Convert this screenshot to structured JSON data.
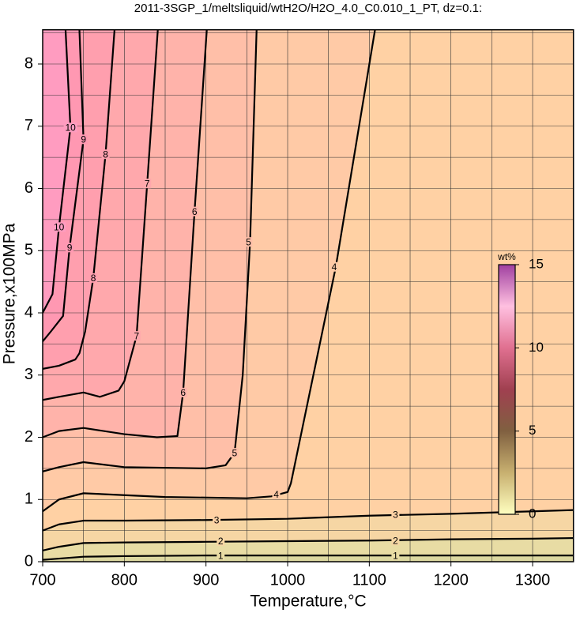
{
  "chart_data": {
    "type": "contour",
    "title": "2011-3SGP_1/meltsliquid/wtH2O/H2O_4.0_C0.010_1_PT, dz=0.1:",
    "xlabel": "Temperature,°C",
    "ylabel": "Pressure,x100MPa",
    "xlim": [
      700,
      1350
    ],
    "ylim": [
      0,
      8.55
    ],
    "xticks": [
      700,
      800,
      900,
      1000,
      1100,
      1200,
      1300
    ],
    "yticks": [
      0,
      1,
      2,
      3,
      4,
      5,
      6,
      7,
      8
    ],
    "xgrid": [
      750,
      800,
      850,
      900,
      950,
      1000,
      1050,
      1100,
      1150,
      1200,
      1250,
      1300
    ],
    "ygrid": [
      0.5,
      1,
      1.5,
      2,
      2.5,
      3,
      3.5,
      4,
      4.5,
      5,
      5.5,
      6,
      6.5,
      7,
      7.5,
      8,
      8.5
    ],
    "background": "#dcd8a0",
    "line_color": "#000000",
    "contours": [
      {
        "level": 1,
        "color": "#e8dca4",
        "x": [
          700,
          720,
          750,
          800,
          900,
          1000,
          1100,
          1200,
          1300,
          1350
        ],
        "y": [
          0.03,
          0.05,
          0.08,
          0.09,
          0.1,
          0.1,
          0.1,
          0.1,
          0.1,
          0.1
        ],
        "labels": [
          {
            "x": 918,
            "y": 0.1
          },
          {
            "x": 1132,
            "y": 0.1
          }
        ]
      },
      {
        "level": 2,
        "color": "#f6d6a4",
        "x": [
          700,
          720,
          750,
          800,
          900,
          1000,
          1100,
          1200,
          1300,
          1350
        ],
        "y": [
          0.18,
          0.24,
          0.3,
          0.31,
          0.32,
          0.33,
          0.34,
          0.36,
          0.37,
          0.38
        ],
        "labels": [
          {
            "x": 918,
            "y": 0.33
          },
          {
            "x": 1132,
            "y": 0.34
          }
        ]
      },
      {
        "level": 3,
        "color": "#ffd1a4",
        "x": [
          700,
          720,
          750,
          800,
          900,
          1000,
          1100,
          1200,
          1300,
          1350
        ],
        "y": [
          0.5,
          0.6,
          0.66,
          0.66,
          0.67,
          0.69,
          0.74,
          0.77,
          0.81,
          0.83
        ],
        "labels": [
          {
            "x": 913,
            "y": 0.67
          },
          {
            "x": 1132,
            "y": 0.76
          }
        ]
      },
      {
        "level": 4,
        "color": "#ffcaa6",
        "x": [
          1107,
          1059,
          1004,
          1000,
          980,
          950,
          850,
          750,
          720,
          700
        ],
        "y": [
          8.55,
          4.74,
          1.26,
          1.12,
          1.05,
          1.02,
          1.04,
          1.1,
          1.0,
          0.81
        ],
        "labels": [
          {
            "x": 986,
            "y": 1.08
          },
          {
            "x": 1057,
            "y": 4.74
          }
        ]
      },
      {
        "level": 5,
        "color": "#ffbfa8",
        "x": [
          962,
          954,
          945,
          935,
          924,
          900,
          800,
          750,
          720,
          700
        ],
        "y": [
          8.55,
          5.14,
          3.0,
          1.75,
          1.55,
          1.5,
          1.52,
          1.6,
          1.52,
          1.45
        ],
        "labels": [
          {
            "x": 935,
            "y": 1.75
          },
          {
            "x": 952,
            "y": 5.14
          }
        ]
      },
      {
        "level": 6,
        "color": "#ffb3aa",
        "x": [
          901,
          886,
          872,
          865,
          840,
          800,
          750,
          720,
          700
        ],
        "y": [
          8.55,
          5.63,
          2.72,
          2.02,
          2.0,
          2.05,
          2.15,
          2.1,
          2.0
        ],
        "labels": [
          {
            "x": 872,
            "y": 2.72
          },
          {
            "x": 886,
            "y": 5.63
          }
        ]
      },
      {
        "level": 7,
        "color": "#ffa8ac",
        "x": [
          841,
          828,
          815,
          800,
          793,
          770,
          750,
          720,
          700
        ],
        "y": [
          8.55,
          6.08,
          3.63,
          2.9,
          2.75,
          2.65,
          2.72,
          2.65,
          2.6
        ],
        "labels": [
          {
            "x": 815,
            "y": 3.63
          },
          {
            "x": 828,
            "y": 6.08
          }
        ]
      },
      {
        "level": 8,
        "color": "#ff9fae",
        "x": [
          788,
          777,
          762,
          752,
          745,
          740,
          720,
          700
        ],
        "y": [
          8.55,
          6.55,
          4.56,
          3.7,
          3.35,
          3.25,
          3.15,
          3.1
        ],
        "labels": [
          {
            "x": 762,
            "y": 4.56
          },
          {
            "x": 777,
            "y": 6.55
          }
        ]
      },
      {
        "level": 9,
        "color": "#ff98b2",
        "x": [
          745,
          750,
          733,
          725,
          710,
          700
        ],
        "y": [
          8.55,
          6.79,
          5.05,
          3.95,
          3.7,
          3.54
        ],
        "labels": [
          {
            "x": 733,
            "y": 5.05
          },
          {
            "x": 750,
            "y": 6.79
          }
        ]
      },
      {
        "level": 10,
        "color": "#ff9cc0",
        "x": [
          728,
          734,
          720,
          712,
          700
        ],
        "y": [
          8.55,
          6.98,
          5.38,
          4.3,
          4.0
        ],
        "labels": [
          {
            "x": 720,
            "y": 5.38
          },
          {
            "x": 734,
            "y": 6.98
          }
        ]
      }
    ],
    "colorbar": {
      "label": "wt%",
      "lim": [
        0,
        15
      ],
      "ticks": [
        0,
        5,
        10,
        15
      ],
      "colors": [
        "#ffffc0",
        "#c8b070",
        "#806040",
        "#a04050",
        "#e07090",
        "#ffc0e0",
        "#a040a0"
      ]
    }
  }
}
